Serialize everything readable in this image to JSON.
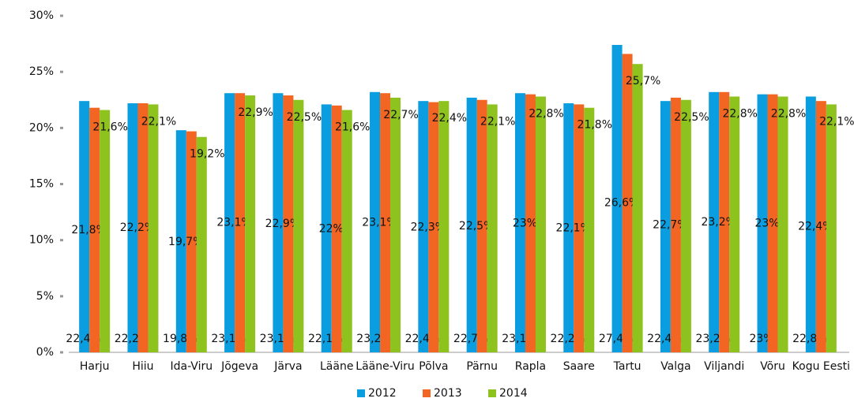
{
  "chart_data": {
    "type": "bar",
    "categories": [
      "Harju",
      "Hiiu",
      "Ida-Viru",
      "Jõgeva",
      "Järva",
      "Lääne",
      "Lääne-Viru",
      "Põlva",
      "Pärnu",
      "Rapla",
      "Saare",
      "Tartu",
      "Valga",
      "Viljandi",
      "Võru",
      "Kogu Eesti"
    ],
    "series": [
      {
        "name": "2012",
        "color": "#0a9ee0",
        "values": [
          22.4,
          22.2,
          19.8,
          23.1,
          23.1,
          22.1,
          23.2,
          22.4,
          22.7,
          23.1,
          22.2,
          27.4,
          22.4,
          23.2,
          23,
          22.8
        ],
        "value_labels": [
          "22,4%",
          "22,2%",
          "19,8%",
          "23,1%",
          "23,1%",
          "22,1%",
          "23,2%",
          "22,4%",
          "22,7%",
          "23,1%",
          "22,2%",
          "27,4%",
          "22,4%",
          "23,2%",
          "23%",
          "22,8%"
        ]
      },
      {
        "name": "2013",
        "color": "#f26522",
        "values": [
          21.8,
          22.2,
          19.7,
          23.1,
          22.9,
          22,
          23.1,
          22.3,
          22.5,
          23,
          22.1,
          26.6,
          22.7,
          23.2,
          23,
          22.4
        ],
        "value_labels": [
          "21,8%",
          "22,2%",
          "19,7%",
          "23,1%",
          "22,9%",
          "22%",
          "23,1%",
          "22,3%",
          "22,5%",
          "23%",
          "22,1%",
          "26,6%",
          "22,7%",
          "23,2%",
          "23%",
          "22,4%"
        ]
      },
      {
        "name": "2014",
        "color": "#8dc21f",
        "values": [
          21.6,
          22.1,
          19.2,
          22.9,
          22.5,
          21.6,
          22.7,
          22.4,
          22.1,
          22.8,
          21.8,
          25.7,
          22.5,
          22.8,
          22.8,
          22.1
        ],
        "value_labels": [
          "21,6%",
          "22,1%",
          "19,2%",
          "22,9%",
          "22,5%",
          "21,6%",
          "22,7%",
          "22,4%",
          "22,1%",
          "22,8%",
          "21,8%",
          "25,7%",
          "22,5%",
          "22,8%",
          "22,8%",
          "22,1%"
        ]
      }
    ],
    "ylim": [
      0,
      30
    ],
    "yticks": [
      {
        "value": 0,
        "label": "0%"
      },
      {
        "value": 5,
        "label": "5%"
      },
      {
        "value": 10,
        "label": "10%"
      },
      {
        "value": 15,
        "label": "15%"
      },
      {
        "value": 20,
        "label": "20%"
      },
      {
        "value": 25,
        "label": "25%"
      },
      {
        "value": 30,
        "label": "30%"
      }
    ],
    "grid": false,
    "legend": "bottom"
  }
}
